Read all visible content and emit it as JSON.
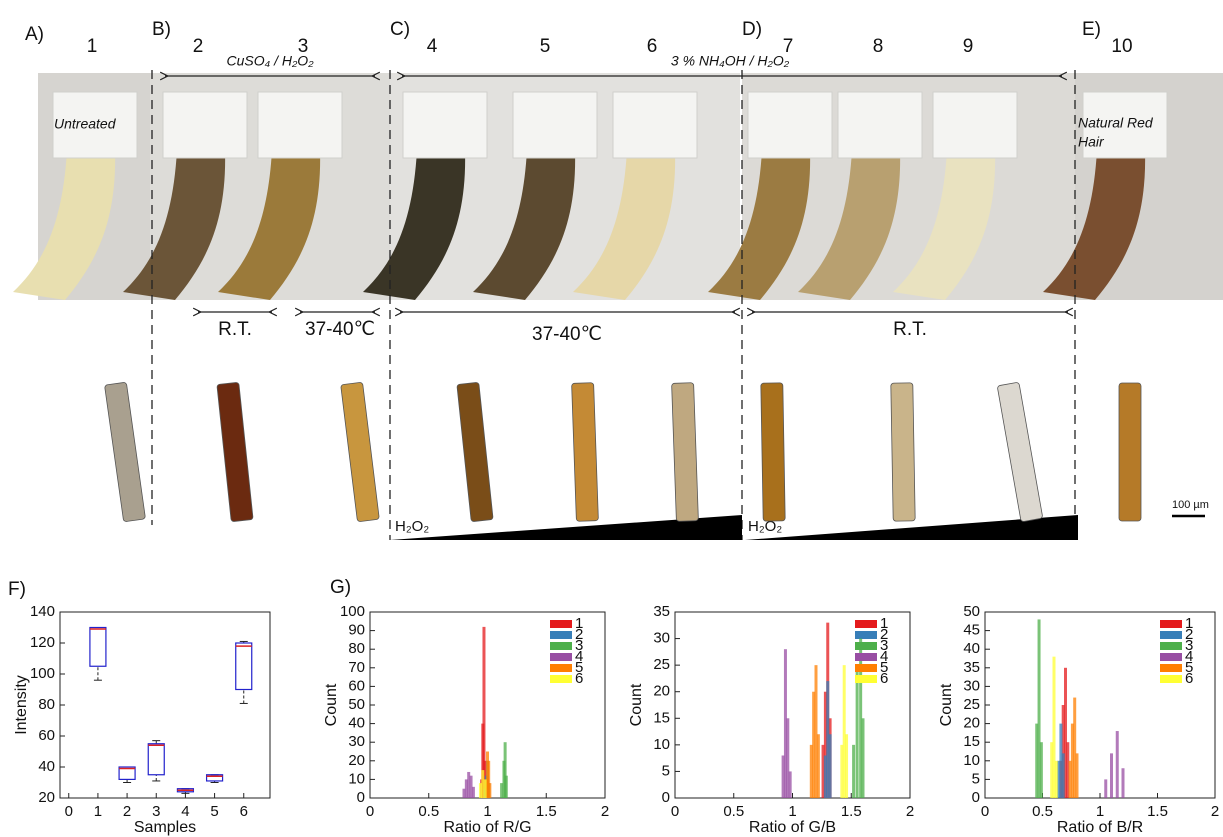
{
  "figure": {
    "panel_labels": [
      "A)",
      "B)",
      "C)",
      "D)",
      "E)"
    ],
    "sample_numbers": [
      "1",
      "2",
      "3",
      "4",
      "5",
      "6",
      "7",
      "8",
      "9",
      "10"
    ],
    "treatments": [
      "CuSO₄ / H₂O₂",
      "3 % NH₄OH / H₂O₂"
    ],
    "conditions": [
      "R.T.",
      "37-40℃",
      "37-40℃",
      "R.T."
    ],
    "untreated": "Untreated",
    "natural_red": [
      "Natural Red",
      "Hair"
    ],
    "h2o2": [
      "H₂O₂",
      "H₂O₂"
    ],
    "scale_bar": "100 µm",
    "chart_labels": [
      "F)",
      "G)"
    ]
  },
  "chart_data": [
    {
      "type": "box",
      "x_label": "Samples",
      "y_label": "Intensity",
      "x": [
        1,
        2,
        3,
        4,
        5,
        6
      ],
      "min": [
        96,
        30,
        31,
        23,
        30,
        81
      ],
      "q1": [
        105,
        32,
        35,
        24,
        31,
        90
      ],
      "median": [
        129,
        39,
        54,
        25,
        34,
        118
      ],
      "q3": [
        130,
        40,
        55,
        26,
        35,
        120
      ],
      "max": [
        130,
        40,
        57,
        26,
        35,
        121
      ],
      "box_color": "#2222cc",
      "median_color": "#dd2222",
      "xlim": [
        -0.3,
        6.9
      ],
      "xticks": [
        0,
        1,
        2,
        3,
        4,
        5,
        6
      ],
      "ylim": [
        20,
        140
      ],
      "yticks": [
        20,
        40,
        60,
        80,
        100,
        120,
        140
      ]
    },
    {
      "type": "histogram",
      "x_label": "Ratio of R/G",
      "y_label": "Count",
      "xlim": [
        0,
        2
      ],
      "xticks": [
        0,
        0.5,
        1,
        1.5,
        2
      ],
      "ylim": [
        0,
        100
      ],
      "yticks": [
        0,
        10,
        20,
        30,
        40,
        50,
        60,
        70,
        80,
        90,
        100
      ],
      "series": [
        {
          "name": "1",
          "color": "#e41a1c",
          "x": [
            0.95,
            0.96,
            0.97,
            0.98
          ],
          "values": [
            10,
            40,
            92,
            20
          ]
        },
        {
          "name": "2",
          "color": "#377eb8",
          "x": [
            0.98,
            0.99,
            1.0,
            1.01
          ],
          "values": [
            5,
            12,
            20,
            8
          ]
        },
        {
          "name": "3",
          "color": "#4daf4a",
          "x": [
            1.12,
            1.14,
            1.15,
            1.16
          ],
          "values": [
            8,
            20,
            30,
            12
          ]
        },
        {
          "name": "4",
          "color": "#984ea3",
          "x": [
            0.8,
            0.82,
            0.84,
            0.86,
            0.88
          ],
          "values": [
            5,
            10,
            14,
            12,
            6
          ]
        },
        {
          "name": "5",
          "color": "#ff7f00",
          "x": [
            0.99,
            1.0,
            1.01,
            1.02
          ],
          "values": [
            10,
            25,
            20,
            8
          ]
        },
        {
          "name": "6",
          "color": "#ffff33",
          "x": [
            0.94,
            0.96,
            0.98
          ],
          "values": [
            8,
            15,
            10
          ]
        }
      ]
    },
    {
      "type": "histogram",
      "x_label": "Ratio of G/B",
      "y_label": "Count",
      "xlim": [
        0,
        2
      ],
      "xticks": [
        0,
        0.5,
        1,
        1.5,
        2
      ],
      "ylim": [
        0,
        35
      ],
      "yticks": [
        0,
        5,
        10,
        15,
        20,
        25,
        30,
        35
      ],
      "series": [
        {
          "name": "1",
          "color": "#e41a1c",
          "x": [
            1.26,
            1.28,
            1.3,
            1.32
          ],
          "values": [
            10,
            20,
            33,
            15
          ]
        },
        {
          "name": "2",
          "color": "#377eb8",
          "x": [
            1.28,
            1.3,
            1.32
          ],
          "values": [
            8,
            22,
            12
          ]
        },
        {
          "name": "3",
          "color": "#4daf4a",
          "x": [
            1.52,
            1.55,
            1.58,
            1.6
          ],
          "values": [
            10,
            25,
            30,
            15
          ]
        },
        {
          "name": "4",
          "color": "#984ea3",
          "x": [
            0.92,
            0.94,
            0.96,
            0.98
          ],
          "values": [
            8,
            28,
            15,
            5
          ]
        },
        {
          "name": "5",
          "color": "#ff7f00",
          "x": [
            1.16,
            1.18,
            1.2,
            1.22
          ],
          "values": [
            10,
            20,
            25,
            12
          ]
        },
        {
          "name": "6",
          "color": "#ffff33",
          "x": [
            1.42,
            1.44,
            1.46
          ],
          "values": [
            10,
            25,
            12
          ]
        }
      ]
    },
    {
      "type": "histogram",
      "x_label": "Ratio of B/R",
      "y_label": "Count",
      "xlim": [
        0,
        2
      ],
      "xticks": [
        0,
        0.5,
        1,
        1.5,
        2
      ],
      "ylim": [
        0,
        50
      ],
      "yticks": [
        0,
        5,
        10,
        15,
        20,
        25,
        30,
        35,
        40,
        45,
        50
      ],
      "series": [
        {
          "name": "1",
          "color": "#e41a1c",
          "x": [
            0.66,
            0.68,
            0.7,
            0.72
          ],
          "values": [
            10,
            25,
            35,
            15
          ]
        },
        {
          "name": "2",
          "color": "#377eb8",
          "x": [
            0.64,
            0.66,
            0.68
          ],
          "values": [
            10,
            20,
            12
          ]
        },
        {
          "name": "3",
          "color": "#4daf4a",
          "x": [
            0.45,
            0.47,
            0.49
          ],
          "values": [
            20,
            48,
            15
          ]
        },
        {
          "name": "4",
          "color": "#984ea3",
          "x": [
            1.05,
            1.1,
            1.15,
            1.2
          ],
          "values": [
            5,
            12,
            18,
            8
          ]
        },
        {
          "name": "5",
          "color": "#ff7f00",
          "x": [
            0.74,
            0.76,
            0.78,
            0.8
          ],
          "values": [
            10,
            20,
            27,
            12
          ]
        },
        {
          "name": "6",
          "color": "#ffff33",
          "x": [
            0.58,
            0.6,
            0.62
          ],
          "values": [
            15,
            38,
            10
          ]
        }
      ]
    }
  ]
}
